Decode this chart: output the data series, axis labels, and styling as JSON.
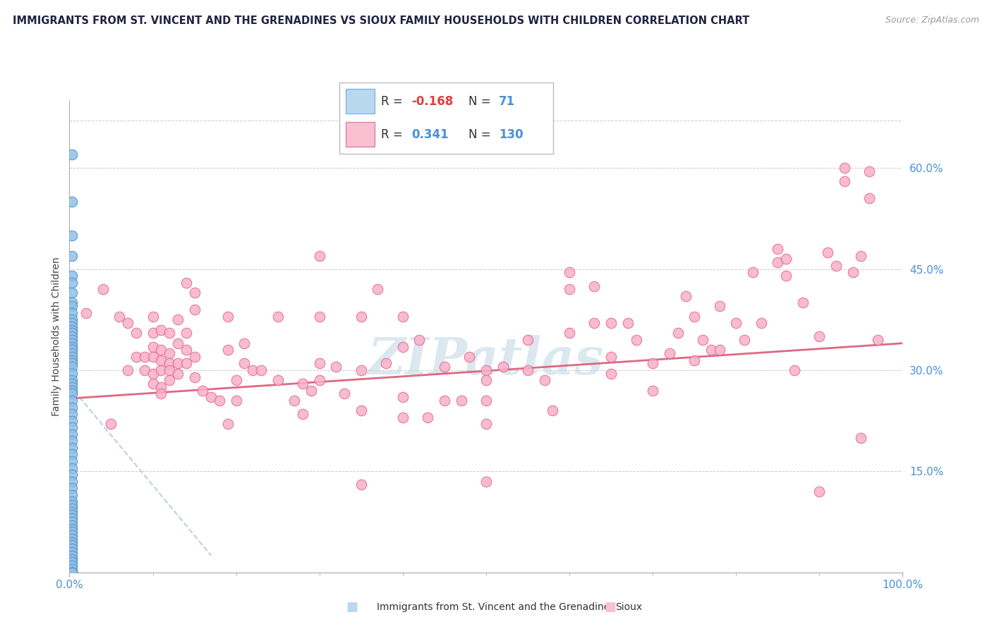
{
  "title": "IMMIGRANTS FROM ST. VINCENT AND THE GRENADINES VS SIOUX FAMILY HOUSEHOLDS WITH CHILDREN CORRELATION CHART",
  "source": "Source: ZipAtlas.com",
  "ylabel": "Family Households with Children",
  "xlim": [
    0.0,
    1.0
  ],
  "ylim": [
    0.0,
    0.7
  ],
  "x_tick_values": [
    0.0,
    1.0
  ],
  "x_tick_labels": [
    "0.0%",
    "100.0%"
  ],
  "y_tick_labels": [
    "15.0%",
    "30.0%",
    "45.0%",
    "60.0%"
  ],
  "y_tick_values": [
    0.15,
    0.3,
    0.45,
    0.6
  ],
  "title_color": "#222244",
  "title_fontsize": 11.0,
  "blue_scatter_color": "#90c0e8",
  "blue_scatter_edge": "#5090c8",
  "pink_scatter_color": "#f8b0c8",
  "pink_scatter_edge": "#e06890",
  "blue_line_color": "#b0c8e0",
  "pink_line_color": "#e06880",
  "tick_label_color": "#4a90d9",
  "watermark": "ZIPatlas",
  "watermark_color": "#dce8f0",
  "blue_legend_face": "#b8d8f0",
  "blue_legend_edge": "#80b8e0",
  "pink_legend_face": "#f8c0d0",
  "pink_legend_edge": "#e080a0",
  "legend_r_color": "#333333",
  "legend_neg_color": "#e04040",
  "legend_pos_color": "#4a90d9",
  "legend_n_color": "#4a90d9",
  "blue_points": [
    [
      0.003,
      0.62
    ],
    [
      0.003,
      0.55
    ],
    [
      0.003,
      0.5
    ],
    [
      0.003,
      0.47
    ],
    [
      0.003,
      0.44
    ],
    [
      0.003,
      0.43
    ],
    [
      0.003,
      0.415
    ],
    [
      0.003,
      0.4
    ],
    [
      0.003,
      0.395
    ],
    [
      0.003,
      0.385
    ],
    [
      0.003,
      0.375
    ],
    [
      0.003,
      0.37
    ],
    [
      0.003,
      0.365
    ],
    [
      0.003,
      0.36
    ],
    [
      0.003,
      0.355
    ],
    [
      0.003,
      0.35
    ],
    [
      0.003,
      0.345
    ],
    [
      0.003,
      0.34
    ],
    [
      0.003,
      0.335
    ],
    [
      0.003,
      0.33
    ],
    [
      0.003,
      0.325
    ],
    [
      0.003,
      0.32
    ],
    [
      0.003,
      0.315
    ],
    [
      0.003,
      0.31
    ],
    [
      0.003,
      0.305
    ],
    [
      0.003,
      0.295
    ],
    [
      0.003,
      0.285
    ],
    [
      0.003,
      0.28
    ],
    [
      0.003,
      0.275
    ],
    [
      0.003,
      0.27
    ],
    [
      0.003,
      0.265
    ],
    [
      0.003,
      0.255
    ],
    [
      0.003,
      0.245
    ],
    [
      0.003,
      0.235
    ],
    [
      0.003,
      0.225
    ],
    [
      0.003,
      0.215
    ],
    [
      0.003,
      0.205
    ],
    [
      0.003,
      0.195
    ],
    [
      0.003,
      0.185
    ],
    [
      0.003,
      0.175
    ],
    [
      0.003,
      0.165
    ],
    [
      0.003,
      0.155
    ],
    [
      0.003,
      0.145
    ],
    [
      0.003,
      0.135
    ],
    [
      0.003,
      0.125
    ],
    [
      0.003,
      0.115
    ],
    [
      0.003,
      0.105
    ],
    [
      0.003,
      0.1
    ],
    [
      0.003,
      0.095
    ],
    [
      0.003,
      0.09
    ],
    [
      0.003,
      0.085
    ],
    [
      0.003,
      0.08
    ],
    [
      0.003,
      0.075
    ],
    [
      0.003,
      0.07
    ],
    [
      0.003,
      0.065
    ],
    [
      0.003,
      0.06
    ],
    [
      0.003,
      0.055
    ],
    [
      0.003,
      0.05
    ],
    [
      0.003,
      0.045
    ],
    [
      0.003,
      0.04
    ],
    [
      0.003,
      0.035
    ],
    [
      0.003,
      0.03
    ],
    [
      0.003,
      0.025
    ],
    [
      0.003,
      0.02
    ],
    [
      0.003,
      0.015
    ],
    [
      0.003,
      0.01
    ],
    [
      0.003,
      0.005
    ],
    [
      0.003,
      0.0
    ],
    [
      0.003,
      0.0
    ],
    [
      0.003,
      0.0
    ],
    [
      0.003,
      0.0
    ]
  ],
  "pink_points": [
    [
      0.02,
      0.385
    ],
    [
      0.04,
      0.42
    ],
    [
      0.05,
      0.22
    ],
    [
      0.06,
      0.38
    ],
    [
      0.07,
      0.37
    ],
    [
      0.07,
      0.3
    ],
    [
      0.08,
      0.355
    ],
    [
      0.08,
      0.32
    ],
    [
      0.09,
      0.32
    ],
    [
      0.09,
      0.3
    ],
    [
      0.1,
      0.38
    ],
    [
      0.1,
      0.355
    ],
    [
      0.1,
      0.335
    ],
    [
      0.1,
      0.32
    ],
    [
      0.1,
      0.295
    ],
    [
      0.1,
      0.28
    ],
    [
      0.11,
      0.36
    ],
    [
      0.11,
      0.33
    ],
    [
      0.11,
      0.315
    ],
    [
      0.11,
      0.3
    ],
    [
      0.11,
      0.275
    ],
    [
      0.11,
      0.265
    ],
    [
      0.12,
      0.355
    ],
    [
      0.12,
      0.325
    ],
    [
      0.12,
      0.31
    ],
    [
      0.12,
      0.3
    ],
    [
      0.12,
      0.285
    ],
    [
      0.13,
      0.375
    ],
    [
      0.13,
      0.34
    ],
    [
      0.13,
      0.31
    ],
    [
      0.13,
      0.295
    ],
    [
      0.14,
      0.43
    ],
    [
      0.14,
      0.355
    ],
    [
      0.14,
      0.33
    ],
    [
      0.14,
      0.31
    ],
    [
      0.15,
      0.415
    ],
    [
      0.15,
      0.39
    ],
    [
      0.15,
      0.32
    ],
    [
      0.15,
      0.29
    ],
    [
      0.16,
      0.27
    ],
    [
      0.17,
      0.26
    ],
    [
      0.18,
      0.255
    ],
    [
      0.19,
      0.38
    ],
    [
      0.19,
      0.33
    ],
    [
      0.19,
      0.22
    ],
    [
      0.2,
      0.285
    ],
    [
      0.2,
      0.255
    ],
    [
      0.21,
      0.34
    ],
    [
      0.21,
      0.31
    ],
    [
      0.22,
      0.3
    ],
    [
      0.23,
      0.3
    ],
    [
      0.25,
      0.38
    ],
    [
      0.25,
      0.285
    ],
    [
      0.27,
      0.255
    ],
    [
      0.28,
      0.28
    ],
    [
      0.28,
      0.235
    ],
    [
      0.29,
      0.27
    ],
    [
      0.3,
      0.47
    ],
    [
      0.3,
      0.38
    ],
    [
      0.3,
      0.31
    ],
    [
      0.3,
      0.285
    ],
    [
      0.32,
      0.305
    ],
    [
      0.33,
      0.265
    ],
    [
      0.35,
      0.38
    ],
    [
      0.35,
      0.3
    ],
    [
      0.35,
      0.24
    ],
    [
      0.35,
      0.13
    ],
    [
      0.37,
      0.42
    ],
    [
      0.38,
      0.31
    ],
    [
      0.4,
      0.38
    ],
    [
      0.4,
      0.335
    ],
    [
      0.4,
      0.26
    ],
    [
      0.4,
      0.23
    ],
    [
      0.42,
      0.345
    ],
    [
      0.43,
      0.23
    ],
    [
      0.45,
      0.305
    ],
    [
      0.45,
      0.255
    ],
    [
      0.47,
      0.255
    ],
    [
      0.48,
      0.32
    ],
    [
      0.5,
      0.3
    ],
    [
      0.5,
      0.285
    ],
    [
      0.5,
      0.255
    ],
    [
      0.5,
      0.22
    ],
    [
      0.5,
      0.135
    ],
    [
      0.52,
      0.305
    ],
    [
      0.55,
      0.345
    ],
    [
      0.55,
      0.3
    ],
    [
      0.57,
      0.285
    ],
    [
      0.58,
      0.24
    ],
    [
      0.6,
      0.445
    ],
    [
      0.6,
      0.42
    ],
    [
      0.6,
      0.355
    ],
    [
      0.63,
      0.425
    ],
    [
      0.63,
      0.37
    ],
    [
      0.65,
      0.37
    ],
    [
      0.65,
      0.32
    ],
    [
      0.65,
      0.295
    ],
    [
      0.67,
      0.37
    ],
    [
      0.68,
      0.345
    ],
    [
      0.7,
      0.31
    ],
    [
      0.7,
      0.27
    ],
    [
      0.72,
      0.325
    ],
    [
      0.73,
      0.355
    ],
    [
      0.74,
      0.41
    ],
    [
      0.75,
      0.38
    ],
    [
      0.75,
      0.315
    ],
    [
      0.76,
      0.345
    ],
    [
      0.77,
      0.33
    ],
    [
      0.78,
      0.395
    ],
    [
      0.78,
      0.33
    ],
    [
      0.8,
      0.37
    ],
    [
      0.81,
      0.345
    ],
    [
      0.82,
      0.445
    ],
    [
      0.83,
      0.37
    ],
    [
      0.85,
      0.48
    ],
    [
      0.85,
      0.46
    ],
    [
      0.86,
      0.465
    ],
    [
      0.86,
      0.44
    ],
    [
      0.87,
      0.3
    ],
    [
      0.88,
      0.4
    ],
    [
      0.9,
      0.35
    ],
    [
      0.9,
      0.12
    ],
    [
      0.91,
      0.475
    ],
    [
      0.92,
      0.455
    ],
    [
      0.93,
      0.6
    ],
    [
      0.93,
      0.58
    ],
    [
      0.94,
      0.445
    ],
    [
      0.95,
      0.47
    ],
    [
      0.95,
      0.2
    ],
    [
      0.96,
      0.595
    ],
    [
      0.96,
      0.555
    ],
    [
      0.97,
      0.345
    ]
  ],
  "blue_line_x": [
    0.0,
    0.17
  ],
  "blue_line_y": [
    0.278,
    0.025
  ],
  "pink_line_x": [
    0.0,
    1.0
  ],
  "pink_line_y_intercept": 0.258,
  "pink_line_slope": 0.082
}
